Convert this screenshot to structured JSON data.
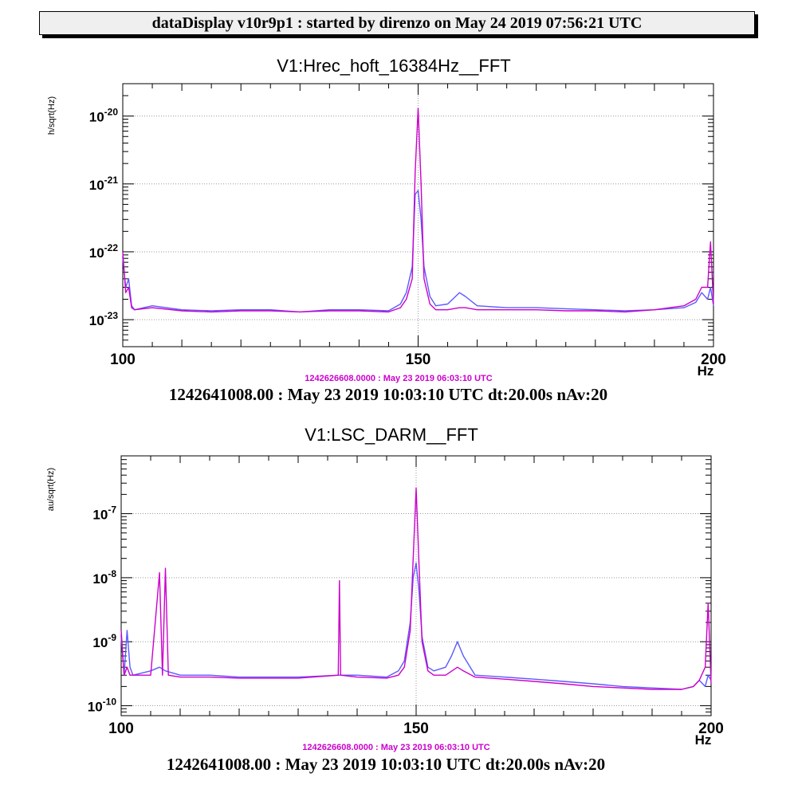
{
  "header": {
    "title": "dataDisplay v10r9p1 : started by direnzo on May 24 2019 07:56:21 UTC"
  },
  "colors": {
    "reference_trace": "#cc00cc",
    "current_trace": "#5a5aff",
    "grid": "#9a9a9a"
  },
  "chart_data": [
    {
      "type": "line",
      "title": "V1:Hrec_hoft_16384Hz__FFT",
      "ylabel": "h/sqrt(Hz)",
      "xlabel": "Hz",
      "xlim": [
        100,
        200
      ],
      "ylim": [
        4e-24,
        3e-20
      ],
      "yscale": "log",
      "grid": true,
      "x_ticks": [
        "100",
        "150",
        "200"
      ],
      "y_ticks": [
        {
          "base": "10",
          "exp": "-20"
        },
        {
          "base": "10",
          "exp": "-21"
        },
        {
          "base": "10",
          "exp": "-22"
        },
        {
          "base": "10",
          "exp": "-23"
        }
      ],
      "reference_time": "1242626608.0000 : May 23 2019 06:03:10 UTC",
      "info": "1242641008.00 : May 23 2019 10:03:10 UTC dt:20.00s nAv:20",
      "series": [
        {
          "color": "#5a5aff",
          "x": [
            100,
            100.5,
            101,
            101.5,
            102,
            105,
            110,
            115,
            120,
            125,
            130,
            135,
            140,
            145,
            147,
            148,
            149,
            149.5,
            150,
            150.5,
            151,
            152,
            153,
            155,
            157,
            158,
            160,
            165,
            170,
            175,
            180,
            185,
            190,
            195,
            197,
            198,
            199,
            199.5,
            200
          ],
          "y": [
            8e-23,
            3e-23,
            4e-23,
            1.6e-23,
            1.4e-23,
            1.6e-23,
            1.4e-23,
            1.35e-23,
            1.4e-23,
            1.4e-23,
            1.3e-23,
            1.4e-23,
            1.4e-23,
            1.35e-23,
            1.7e-23,
            2.5e-23,
            6e-23,
            7e-22,
            8e-22,
            3e-22,
            6e-23,
            2.2e-23,
            1.6e-23,
            1.7e-23,
            2.5e-23,
            2.2e-23,
            1.6e-23,
            1.5e-23,
            1.5e-23,
            1.45e-23,
            1.4e-23,
            1.35e-23,
            1.4e-23,
            1.5e-23,
            1.8e-23,
            2.5e-23,
            2e-23,
            3e-23,
            1.6e-23
          ]
        },
        {
          "color": "#cc00cc",
          "x": [
            100,
            100.5,
            101,
            101.5,
            102,
            105,
            110,
            115,
            120,
            125,
            130,
            135,
            140,
            145,
            147,
            148,
            149,
            149.5,
            150,
            150.5,
            151,
            152,
            153,
            155,
            157,
            158,
            160,
            165,
            170,
            175,
            180,
            185,
            190,
            195,
            197,
            198,
            199,
            199.5,
            200
          ],
          "y": [
            1e-22,
            2.5e-23,
            3e-23,
            1.5e-23,
            1.4e-23,
            1.5e-23,
            1.35e-23,
            1.3e-23,
            1.35e-23,
            1.35e-23,
            1.3e-23,
            1.35e-23,
            1.35e-23,
            1.3e-23,
            1.5e-23,
            2e-23,
            4e-23,
            1.5e-21,
            1.3e-20,
            1e-21,
            4e-23,
            1.7e-23,
            1.4e-23,
            1.4e-23,
            1.5e-23,
            1.5e-23,
            1.4e-23,
            1.4e-23,
            1.4e-23,
            1.35e-23,
            1.35e-23,
            1.3e-23,
            1.4e-23,
            1.6e-23,
            2e-23,
            3e-23,
            3e-23,
            1.4e-22,
            1.7e-23
          ]
        }
      ]
    },
    {
      "type": "line",
      "title": "V1:LSC_DARM__FFT",
      "ylabel": "au/sqrt(Hz)",
      "xlabel": "Hz",
      "xlim": [
        100,
        200
      ],
      "ylim": [
        7e-11,
        8e-07
      ],
      "yscale": "log",
      "grid": true,
      "x_ticks": [
        "100",
        "150",
        "200"
      ],
      "y_ticks": [
        {
          "base": "10",
          "exp": "-7"
        },
        {
          "base": "10",
          "exp": "-8"
        },
        {
          "base": "10",
          "exp": "-9"
        },
        {
          "base": "10",
          "exp": "-10"
        }
      ],
      "reference_time": "1242626608.0000 : May 23 2019 06:03:10 UTC",
      "info": "1242641008.00 : May 23 2019 10:03:10 UTC dt:20.00s nAv:20",
      "series": [
        {
          "color": "#5a5aff",
          "x": [
            100,
            100.5,
            101,
            101.5,
            102,
            105,
            106.5,
            107.5,
            110,
            115,
            120,
            125,
            130,
            137,
            140,
            145,
            147,
            148,
            149,
            149.5,
            150,
            150.5,
            151,
            152,
            153,
            155,
            156,
            157,
            158,
            160,
            165,
            170,
            175,
            180,
            185,
            190,
            195,
            197,
            198,
            199,
            199.5,
            200
          ],
          "y": [
            1.2e-09,
            3e-10,
            1.5e-09,
            4e-10,
            3e-10,
            3.5e-10,
            4e-10,
            3.5e-10,
            3e-10,
            3e-10,
            2.8e-10,
            2.8e-10,
            2.8e-10,
            3e-10,
            3e-10,
            2.8e-10,
            3.5e-10,
            5e-10,
            2e-09,
            1e-08,
            1.7e-08,
            6e-09,
            1.2e-09,
            4e-10,
            3.5e-10,
            4e-10,
            6e-10,
            1e-09,
            6e-10,
            3e-10,
            2.8e-10,
            2.6e-10,
            2.4e-10,
            2.2e-10,
            2e-10,
            1.9e-10,
            1.8e-10,
            2e-10,
            2.5e-10,
            2e-10,
            3e-10,
            2.5e-10
          ]
        },
        {
          "color": "#cc00cc",
          "x": [
            100,
            100.5,
            101,
            101.5,
            102,
            105,
            106.5,
            107,
            107.5,
            108,
            110,
            115,
            120,
            125,
            130,
            136.8,
            137,
            137.2,
            140,
            145,
            147,
            148,
            149,
            149.5,
            150,
            150.5,
            151,
            152,
            153,
            155,
            157,
            158,
            160,
            165,
            170,
            175,
            180,
            185,
            190,
            195,
            197,
            198,
            199,
            199.5,
            200
          ],
          "y": [
            1.5e-09,
            3e-10,
            4e-10,
            3e-10,
            3e-10,
            3e-10,
            1.2e-08,
            3e-10,
            1.4e-08,
            3e-10,
            2.8e-10,
            2.8e-10,
            2.7e-10,
            2.7e-10,
            2.7e-10,
            3e-10,
            9e-09,
            3e-10,
            2.8e-10,
            2.7e-10,
            3e-10,
            4e-10,
            1.5e-09,
            2e-08,
            2.5e-07,
            1.5e-08,
            1e-09,
            3.5e-10,
            3e-10,
            3e-10,
            4e-10,
            3.5e-10,
            2.8e-10,
            2.6e-10,
            2.4e-10,
            2.2e-10,
            2e-10,
            1.9e-10,
            1.8e-10,
            1.8e-10,
            2e-10,
            2.5e-10,
            4e-10,
            4e-09,
            2.2e-10
          ]
        }
      ]
    }
  ]
}
